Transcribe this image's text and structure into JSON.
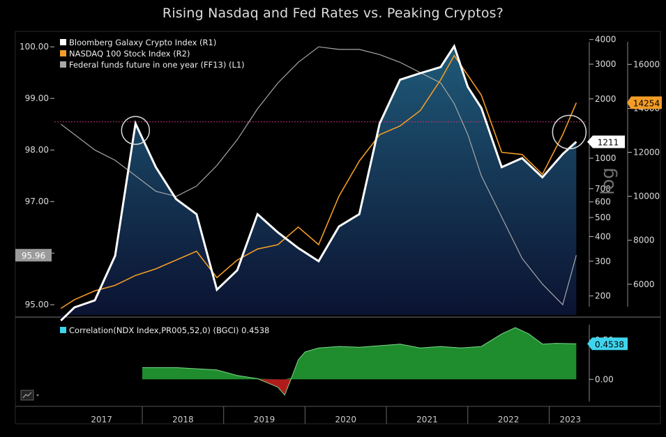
{
  "title": "Rising Nasdaq and Fed Rates vs. Peaking Cryptos?",
  "colors": {
    "crypto": "#ffffff",
    "nasdaq": "#f39c26",
    "fedfunds": "#a8a8a8",
    "area_top": "#1f5a78",
    "area_bottom": "#0b1130",
    "corr_pos": "#1f8c2e",
    "corr_neg": "#b01c1c",
    "corr_badge": "#3fd4ee",
    "nasdaq_badge": "#f39c26",
    "marker_line": "#c0327a"
  },
  "chart_data": [
    {
      "type": "line",
      "title": "Rising Nasdaq and Fed Rates vs. Peaking Cryptos?",
      "x": [
        "2017-01",
        "2017-03",
        "2017-06",
        "2017-09",
        "2017-12",
        "2018-03",
        "2018-06",
        "2018-09",
        "2018-12",
        "2019-03",
        "2019-06",
        "2019-09",
        "2019-12",
        "2020-03",
        "2020-06",
        "2020-09",
        "2020-12",
        "2021-03",
        "2021-06",
        "2021-09",
        "2021-11",
        "2022-01",
        "2022-03",
        "2022-06",
        "2022-09",
        "2022-12",
        "2023-03",
        "2023-05"
      ],
      "x_tick_labels": [
        "2017",
        "2018",
        "2019",
        "2020",
        "2021",
        "2022",
        "2023"
      ],
      "series": [
        {
          "name": "Bloomberg Galaxy Crypto Index (R1)",
          "axis": "R1",
          "values": [
            150,
            175,
            190,
            320,
            1500,
            900,
            620,
            520,
            215,
            270,
            520,
            420,
            350,
            300,
            450,
            520,
            1500,
            2500,
            2700,
            2900,
            3700,
            2300,
            1800,
            900,
            1000,
            800,
            1050,
            1211
          ]
        },
        {
          "name": "NASDAQ 100 Stock Index (R2)",
          "axis": "R2",
          "values": [
            4900,
            5300,
            5700,
            5950,
            6400,
            6700,
            7100,
            7500,
            6300,
            7100,
            7600,
            7800,
            8600,
            7800,
            10000,
            11600,
            12800,
            13200,
            13900,
            15300,
            16400,
            15500,
            14600,
            12000,
            11900,
            11000,
            12800,
            14254
          ]
        },
        {
          "name": "Federal funds future in one year (FF13) (L1)",
          "axis": "L1",
          "values": [
            98.5,
            98.3,
            98.0,
            97.8,
            97.5,
            97.2,
            97.1,
            97.3,
            97.7,
            98.2,
            98.8,
            99.3,
            99.7,
            100.0,
            99.95,
            99.95,
            99.85,
            99.7,
            99.5,
            99.3,
            98.9,
            98.3,
            97.5,
            96.7,
            95.9,
            95.4,
            95.0,
            95.96
          ]
        }
      ],
      "axes": {
        "L1": {
          "ticks": [
            "95.00",
            "96.00",
            "97.00",
            "98.00",
            "99.00",
            "100.00"
          ],
          "ylim": [
            94.8,
            100.3
          ]
        },
        "R1": {
          "ticks": [
            "200",
            "300",
            "400",
            "500",
            "600",
            "700",
            "1000",
            "2000",
            "3000",
            "4000"
          ],
          "scale": "log",
          "ylim": [
            160,
            4400
          ]
        },
        "R2": {
          "ticks": [
            "6000",
            "8000",
            "10000",
            "12000",
            "14000",
            "16000"
          ],
          "ylim": [
            4600,
            17500
          ]
        }
      },
      "badges": {
        "nasdaq_last": "14254",
        "crypto_last": "1211",
        "fed_last": "95.96"
      },
      "watermark": "log",
      "reference_line_R1": 1530,
      "grid": false,
      "legend_placement": "top-left"
    },
    {
      "type": "area",
      "x": [
        "2018-01",
        "2018-06",
        "2018-12",
        "2019-03",
        "2019-06",
        "2019-09",
        "2019-10",
        "2019-11",
        "2019-12",
        "2020-01",
        "2020-03",
        "2020-06",
        "2020-09",
        "2020-12",
        "2021-03",
        "2021-06",
        "2021-09",
        "2021-12",
        "2022-03",
        "2022-06",
        "2022-08",
        "2022-10",
        "2022-12",
        "2023-02",
        "2023-05"
      ],
      "series": [
        {
          "name": "Correlation(NDX Index,PR005,52,0) (BGCI) 0.4538",
          "values": [
            0.15,
            0.15,
            0.12,
            0.05,
            0.01,
            -0.1,
            -0.2,
            0.02,
            0.25,
            0.35,
            0.4,
            0.42,
            0.41,
            0.43,
            0.45,
            0.4,
            0.42,
            0.4,
            0.42,
            0.58,
            0.66,
            0.58,
            0.45,
            0.46,
            0.4538
          ]
        }
      ],
      "axis_ticks": [
        "0.00",
        "0.50"
      ],
      "badge": "0.4538",
      "ylim": [
        -0.3,
        0.75
      ]
    }
  ],
  "toolbar": {
    "chart_type_icon": "line-chart-icon"
  }
}
